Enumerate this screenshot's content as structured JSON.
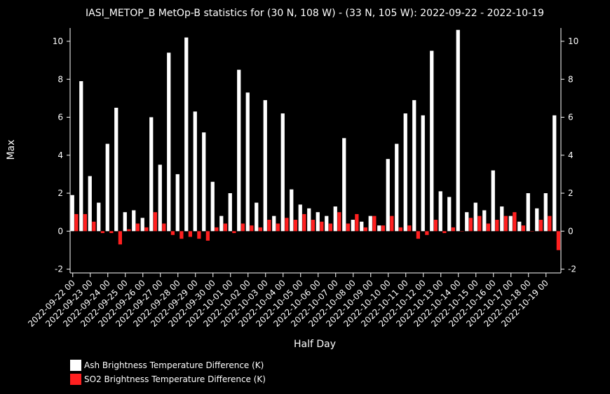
{
  "chart_data": {
    "type": "bar",
    "title": "IASI_METOP_B MetOp-B statistics for (30 N, 108 W) - (33 N, 105 W): 2022-09-22 - 2022-10-19",
    "xlabel": "Half Day",
    "ylabel": "Max",
    "ylim": [
      -2.2,
      10.7
    ],
    "yticks": [
      -2,
      0,
      2,
      4,
      6,
      8,
      10
    ],
    "date_labels": [
      "2022-09-22 00",
      "2022-09-23 00",
      "2022-09-24 00",
      "2022-09-25 00",
      "2022-09-26 00",
      "2022-09-27 00",
      "2022-09-28 00",
      "2022-09-29 00",
      "2022-09-30 00",
      "2022-10-01 00",
      "2022-10-02 00",
      "2022-10-03 00",
      "2022-10-04 00",
      "2022-10-05 00",
      "2022-10-06 00",
      "2022-10-07 00",
      "2022-10-08 00",
      "2022-10-09 00",
      "2022-10-10 00",
      "2022-10-11 00",
      "2022-10-12 00",
      "2022-10-13 00",
      "2022-10-14 00",
      "2022-10-15 00",
      "2022-10-16 00",
      "2022-10-17 00",
      "2022-10-18 00",
      "2022-10-19 00"
    ],
    "series": [
      {
        "name": "Ash Brightness Temperature Difference (K)",
        "color": "#ffffff",
        "values": [
          1.9,
          7.9,
          2.9,
          1.5,
          4.6,
          6.5,
          1.0,
          1.1,
          0.7,
          6.0,
          3.5,
          9.4,
          3.0,
          10.2,
          6.3,
          5.2,
          2.6,
          0.8,
          2.0,
          8.5,
          7.3,
          1.5,
          6.9,
          0.8,
          6.2,
          2.2,
          1.4,
          1.2,
          1.0,
          0.8,
          1.3,
          4.9,
          0.6,
          0.5,
          0.8,
          0.3,
          3.8,
          4.6,
          6.2,
          6.9,
          6.1,
          9.5,
          2.1,
          1.8,
          10.6,
          1.0,
          1.5,
          1.1,
          3.2,
          1.3,
          0.8,
          0.5,
          2.0,
          1.2,
          2.0,
          6.1
        ]
      },
      {
        "name": "SO2 Brightness Temperature Difference (K)",
        "color": "#ff2020",
        "values": [
          0.9,
          0.9,
          0.5,
          -0.1,
          -0.1,
          -0.7,
          0.1,
          0.4,
          0.2,
          1.0,
          0.4,
          -0.2,
          -0.4,
          -0.3,
          -0.4,
          -0.5,
          0.2,
          0.4,
          -0.1,
          0.4,
          0.3,
          0.2,
          0.6,
          0.4,
          0.7,
          0.6,
          0.9,
          0.6,
          0.5,
          0.4,
          1.0,
          0.4,
          0.9,
          0.2,
          0.8,
          0.3,
          0.8,
          0.2,
          0.3,
          -0.4,
          -0.2,
          0.6,
          -0.1,
          0.2,
          0.0,
          0.7,
          0.8,
          0.4,
          0.6,
          0.8,
          1.0,
          0.3,
          0.0,
          0.6,
          0.8,
          -1.0
        ]
      }
    ],
    "legend_position": "bottom-left"
  }
}
